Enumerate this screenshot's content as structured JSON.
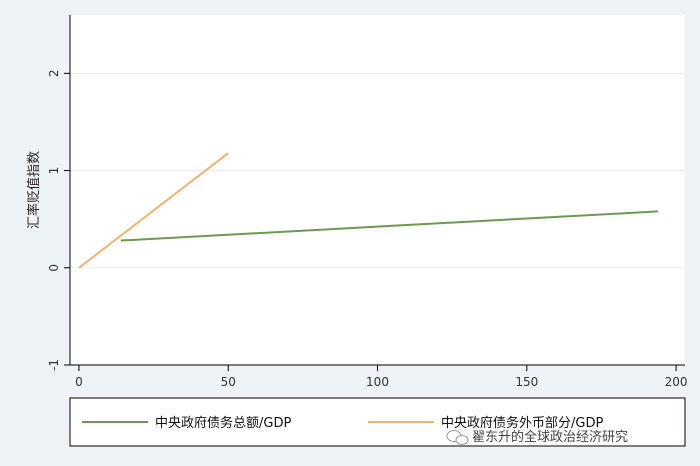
{
  "chart_data": {
    "type": "line",
    "title": "",
    "xlabel": "",
    "ylabel": "汇率贬值指数",
    "xlim": [
      -3,
      203
    ],
    "ylim": [
      -1,
      2.6
    ],
    "xticks": [
      0,
      50,
      100,
      150,
      200
    ],
    "yticks": [
      -1,
      0,
      1,
      2
    ],
    "grid": "horizontal",
    "legend_position": "bottom",
    "series": [
      {
        "name": "中央政府债务总额/GDP",
        "color": "#6d9a4c",
        "x": [
          14,
          194
        ],
        "y": [
          0.28,
          0.58
        ]
      },
      {
        "name": "中央政府债务外币部分/GDP",
        "color": "#f0b36a",
        "x": [
          0,
          50
        ],
        "y": [
          0,
          1.18
        ]
      }
    ]
  },
  "watermark": {
    "text": "翟东升的全球政治经济研究",
    "icon": "wechat-icon"
  },
  "colors": {
    "plot_bg": "#ffffff",
    "page_bg": "#eef3f8",
    "grid": "#e8edf2",
    "axis": "#000000"
  }
}
